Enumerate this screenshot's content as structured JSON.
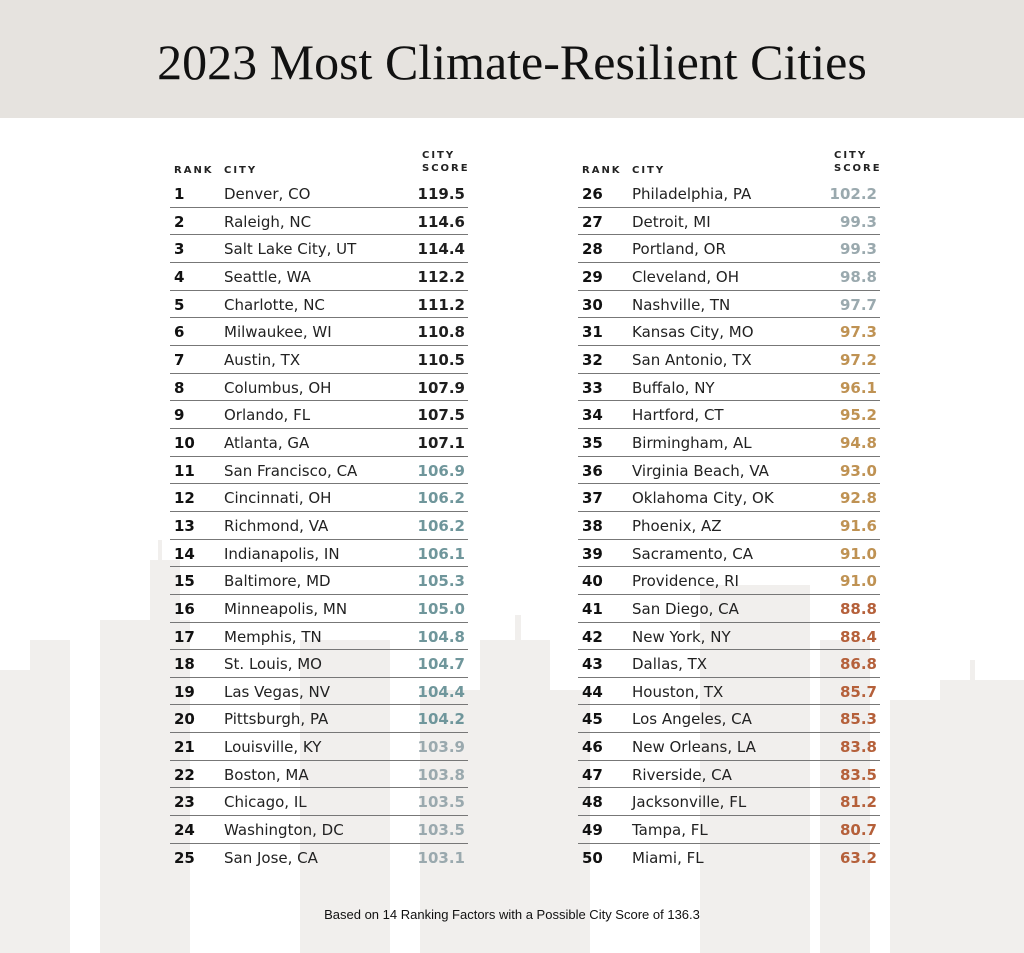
{
  "title": "2023 Most Climate-Resilient Cities",
  "columns": {
    "rank": "RANK",
    "city": "CITY",
    "score_line1": "CITY",
    "score_line2": "SCORE"
  },
  "tier_colors": [
    "#1e1e1e",
    "#6f969b",
    "#9aa9ae",
    "#bf9253",
    "#b5603a"
  ],
  "rows": [
    {
      "rank": "1",
      "city": "Denver, CO",
      "score": "119.5"
    },
    {
      "rank": "2",
      "city": "Raleigh, NC",
      "score": "114.6"
    },
    {
      "rank": "3",
      "city": "Salt Lake City, UT",
      "score": "114.4"
    },
    {
      "rank": "4",
      "city": "Seattle, WA",
      "score": "112.2"
    },
    {
      "rank": "5",
      "city": "Charlotte, NC",
      "score": "111.2"
    },
    {
      "rank": "6",
      "city": "Milwaukee, WI",
      "score": "110.8"
    },
    {
      "rank": "7",
      "city": "Austin, TX",
      "score": "110.5"
    },
    {
      "rank": "8",
      "city": "Columbus, OH",
      "score": "107.9"
    },
    {
      "rank": "9",
      "city": "Orlando, FL",
      "score": "107.5"
    },
    {
      "rank": "10",
      "city": "Atlanta, GA",
      "score": "107.1"
    },
    {
      "rank": "11",
      "city": "San Francisco, CA",
      "score": "106.9"
    },
    {
      "rank": "12",
      "city": "Cincinnati, OH",
      "score": "106.2"
    },
    {
      "rank": "13",
      "city": "Richmond, VA",
      "score": "106.2"
    },
    {
      "rank": "14",
      "city": "Indianapolis, IN",
      "score": "106.1"
    },
    {
      "rank": "15",
      "city": "Baltimore, MD",
      "score": "105.3"
    },
    {
      "rank": "16",
      "city": "Minneapolis, MN",
      "score": "105.0"
    },
    {
      "rank": "17",
      "city": "Memphis, TN",
      "score": "104.8"
    },
    {
      "rank": "18",
      "city": "St. Louis, MO",
      "score": "104.7"
    },
    {
      "rank": "19",
      "city": "Las Vegas, NV",
      "score": "104.4"
    },
    {
      "rank": "20",
      "city": "Pittsburgh, PA",
      "score": "104.2"
    },
    {
      "rank": "21",
      "city": "Louisville, KY",
      "score": "103.9"
    },
    {
      "rank": "22",
      "city": "Boston, MA",
      "score": "103.8"
    },
    {
      "rank": "23",
      "city": "Chicago, IL",
      "score": "103.5"
    },
    {
      "rank": "24",
      "city": "Washington, DC",
      "score": "103.5"
    },
    {
      "rank": "25",
      "city": "San Jose, CA",
      "score": "103.1"
    },
    {
      "rank": "26",
      "city": "Philadelphia, PA",
      "score": "102.2"
    },
    {
      "rank": "27",
      "city": "Detroit, MI",
      "score": "99.3"
    },
    {
      "rank": "28",
      "city": "Portland, OR",
      "score": "99.3"
    },
    {
      "rank": "29",
      "city": "Cleveland, OH",
      "score": "98.8"
    },
    {
      "rank": "30",
      "city": "Nashville, TN",
      "score": "97.7"
    },
    {
      "rank": "31",
      "city": "Kansas City, MO",
      "score": "97.3"
    },
    {
      "rank": "32",
      "city": "San Antonio, TX",
      "score": "97.2"
    },
    {
      "rank": "33",
      "city": "Buffalo, NY",
      "score": "96.1"
    },
    {
      "rank": "34",
      "city": "Hartford, CT",
      "score": "95.2"
    },
    {
      "rank": "35",
      "city": "Birmingham, AL",
      "score": "94.8"
    },
    {
      "rank": "36",
      "city": "Virginia Beach, VA",
      "score": "93.0"
    },
    {
      "rank": "37",
      "city": "Oklahoma City, OK",
      "score": "92.8"
    },
    {
      "rank": "38",
      "city": "Phoenix, AZ",
      "score": "91.6"
    },
    {
      "rank": "39",
      "city": "Sacramento, CA",
      "score": "91.0"
    },
    {
      "rank": "40",
      "city": "Providence, RI",
      "score": "91.0"
    },
    {
      "rank": "41",
      "city": "San Diego, CA",
      "score": "88.8"
    },
    {
      "rank": "42",
      "city": "New York, NY",
      "score": "88.4"
    },
    {
      "rank": "43",
      "city": "Dallas, TX",
      "score": "86.8"
    },
    {
      "rank": "44",
      "city": "Houston, TX",
      "score": "85.7"
    },
    {
      "rank": "45",
      "city": "Los Angeles, CA",
      "score": "85.3"
    },
    {
      "rank": "46",
      "city": "New Orleans, LA",
      "score": "83.8"
    },
    {
      "rank": "47",
      "city": "Riverside, CA",
      "score": "83.5"
    },
    {
      "rank": "48",
      "city": "Jacksonville, FL",
      "score": "81.2"
    },
    {
      "rank": "49",
      "city": "Tampa, FL",
      "score": "80.7"
    },
    {
      "rank": "50",
      "city": "Miami, FL",
      "score": "63.2"
    }
  ],
  "footer": "Based on 14 Ranking Factors with a Possible City Score of 136.3"
}
